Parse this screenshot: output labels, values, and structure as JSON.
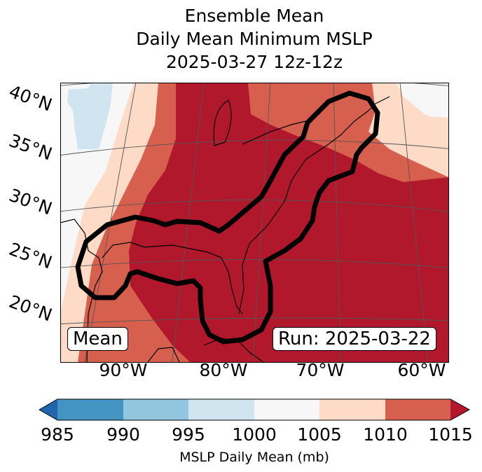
{
  "title": {
    "line1": "Ensemble Mean",
    "line2": "Daily Mean Minimum MSLP",
    "line3": "2025-03-27 12z-12z"
  },
  "map": {
    "lat_labels": [
      "40°N",
      "35°N",
      "30°N",
      "25°N",
      "20°N"
    ],
    "lon_labels": [
      "90°W",
      "80°W",
      "70°W",
      "60°W"
    ],
    "mean_label": "Mean",
    "run_label": "Run: 2025-03-22"
  },
  "colorbar": {
    "label": "MSLP Daily Mean (mb)",
    "ticks": [
      "985",
      "990",
      "995",
      "1000",
      "1005",
      "1010",
      "1015"
    ],
    "colors": {
      "under": "#2166ac",
      "c985": "#4393c3",
      "c990": "#92c5de",
      "c995": "#d1e5f0",
      "c1000": "#f7f7f7",
      "c1005": "#fddbc7",
      "c1010": "#d6604d",
      "over": "#b2182b"
    }
  }
}
